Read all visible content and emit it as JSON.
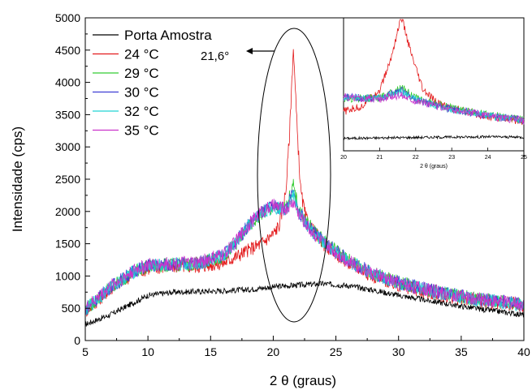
{
  "chart_data": {
    "type": "line",
    "xlabel": "2 θ (graus)",
    "ylabel": "Intensidade (cps)",
    "xlim": [
      5,
      40
    ],
    "ylim": [
      0,
      5000
    ],
    "x_ticks": [
      "5",
      "10",
      "15",
      "20",
      "25",
      "30",
      "35",
      "40"
    ],
    "y_ticks": [
      "0",
      "500",
      "1000",
      "1500",
      "2000",
      "2500",
      "3000",
      "3500",
      "4000",
      "4500",
      "5000"
    ],
    "legend_position": "top-left",
    "annotation": "21,6°",
    "series": [
      {
        "name": "Porta Amostra",
        "color": "#000000",
        "x": [
          5,
          7,
          9,
          10,
          12,
          14,
          16,
          18,
          20,
          22,
          24,
          26,
          28,
          30,
          33,
          36,
          40
        ],
        "y": [
          250,
          400,
          600,
          700,
          750,
          760,
          770,
          790,
          830,
          860,
          880,
          850,
          780,
          700,
          600,
          500,
          400
        ]
      },
      {
        "name": "24 °C",
        "color": "#e31a1c",
        "x": [
          5,
          7,
          9,
          10,
          12,
          14,
          16,
          17,
          18,
          19,
          20,
          20.5,
          21,
          21.3,
          21.6,
          21.9,
          22.2,
          22.6,
          23,
          24,
          26,
          28,
          30,
          33,
          36,
          40
        ],
        "y": [
          450,
          800,
          1050,
          1120,
          1150,
          1150,
          1200,
          1300,
          1400,
          1500,
          1650,
          1800,
          2300,
          3200,
          4550,
          3300,
          2300,
          1900,
          1750,
          1500,
          1200,
          1000,
          850,
          720,
          620,
          550
        ]
      },
      {
        "name": "29 °C",
        "color": "#33cc33",
        "x": [
          5,
          7,
          9,
          10,
          12,
          14,
          16,
          17,
          18,
          19,
          20,
          21,
          21.6,
          22,
          23,
          24,
          26,
          28,
          30,
          33,
          36,
          40
        ],
        "y": [
          470,
          820,
          1080,
          1150,
          1170,
          1190,
          1300,
          1500,
          1750,
          1950,
          2050,
          2050,
          2400,
          2050,
          1750,
          1550,
          1250,
          1050,
          900,
          760,
          650,
          560
        ]
      },
      {
        "name": "30 °C",
        "color": "#3f3fd4",
        "x": [
          5,
          7,
          9,
          10,
          12,
          14,
          16,
          17,
          18,
          19,
          20,
          21,
          21.6,
          22,
          23,
          24,
          26,
          28,
          30,
          33,
          36,
          40
        ],
        "y": [
          480,
          830,
          1090,
          1160,
          1180,
          1200,
          1320,
          1520,
          1780,
          1980,
          2080,
          2050,
          2300,
          2000,
          1720,
          1530,
          1240,
          1040,
          900,
          760,
          650,
          560
        ]
      },
      {
        "name": "32 °C",
        "color": "#22d3d3",
        "x": [
          5,
          7,
          9,
          10,
          12,
          14,
          16,
          17,
          18,
          19,
          20,
          21,
          21.6,
          22,
          23,
          24,
          26,
          28,
          30,
          33,
          36,
          40
        ],
        "y": [
          475,
          825,
          1085,
          1155,
          1175,
          1195,
          1310,
          1510,
          1770,
          1970,
          2070,
          2040,
          2250,
          1990,
          1710,
          1520,
          1230,
          1030,
          890,
          755,
          645,
          555
        ]
      },
      {
        "name": "35 °C",
        "color": "#cc33cc",
        "x": [
          5,
          7,
          9,
          10,
          12,
          14,
          16,
          17,
          18,
          19,
          20,
          21,
          21.6,
          22,
          23,
          24,
          26,
          28,
          30,
          33,
          36,
          40
        ],
        "y": [
          490,
          840,
          1100,
          1170,
          1190,
          1210,
          1330,
          1530,
          1790,
          1990,
          2090,
          2030,
          2150,
          1980,
          1700,
          1510,
          1230,
          1030,
          890,
          760,
          650,
          560
        ]
      }
    ],
    "inset": {
      "xlabel": "2 θ (graus)",
      "xlim": [
        20,
        25
      ],
      "x_ticks": [
        "20",
        "21",
        "22",
        "23",
        "24",
        "25"
      ]
    }
  }
}
